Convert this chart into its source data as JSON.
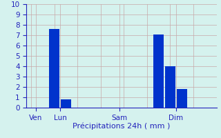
{
  "xlabel": "Précipitations 24h ( mm )",
  "ylim": [
    0,
    10
  ],
  "background_color": "#d5f2ee",
  "grid_color": "#c8a8a8",
  "bar_color": "#0033cc",
  "axis_label_color": "#2222bb",
  "bar_positions": [
    1.0,
    1.5,
    5.5,
    6.0,
    6.5
  ],
  "bar_heights": [
    7.6,
    0.8,
    7.1,
    4.0,
    1.8
  ],
  "bar_width": 0.45,
  "x_tick_positions": [
    0.2,
    1.25,
    3.8,
    6.25
  ],
  "x_tick_labels": [
    "Ven",
    "Lun",
    "Sam",
    "Dim"
  ],
  "xlim": [
    -0.2,
    8.0
  ],
  "yticks": [
    0,
    1,
    2,
    3,
    4,
    5,
    6,
    7,
    8,
    9,
    10
  ],
  "xlabel_fontsize": 8,
  "tick_fontsize": 7.5
}
